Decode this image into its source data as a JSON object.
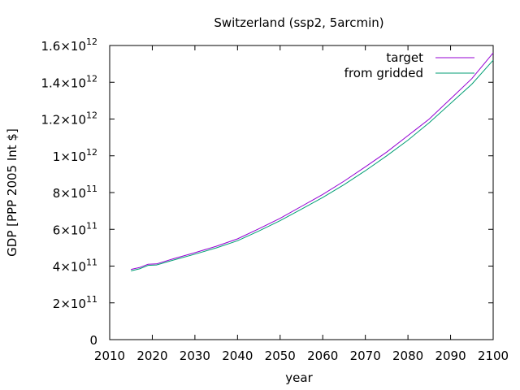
{
  "chart_data": {
    "type": "line",
    "title": "Switzerland (ssp2, 5arcmin)",
    "xlabel": "year",
    "ylabel": "GDP [PPP 2005 Int $]",
    "xlim": [
      2010,
      2100
    ],
    "ylim": [
      0,
      1600000000000.0
    ],
    "x_ticks": [
      "2010",
      "2020",
      "2030",
      "2040",
      "2050",
      "2060",
      "2070",
      "2080",
      "2090",
      "2100"
    ],
    "y_ticks": [
      {
        "value": 0,
        "mantissa": "0",
        "exponent": ""
      },
      {
        "value": 200000000000.0,
        "mantissa": "2×10",
        "exponent": "11"
      },
      {
        "value": 400000000000.0,
        "mantissa": "4×10",
        "exponent": "11"
      },
      {
        "value": 600000000000.0,
        "mantissa": "6×10",
        "exponent": "11"
      },
      {
        "value": 800000000000.0,
        "mantissa": "8×10",
        "exponent": "11"
      },
      {
        "value": 1000000000000.0,
        "mantissa": "1×10",
        "exponent": "12"
      },
      {
        "value": 1200000000000.0,
        "mantissa": "1.2×10",
        "exponent": "12"
      },
      {
        "value": 1400000000000.0,
        "mantissa": "1.4×10",
        "exponent": "12"
      },
      {
        "value": 1600000000000.0,
        "mantissa": "1.6×10",
        "exponent": "12"
      }
    ],
    "grid": false,
    "legend_position": "top-right",
    "series": [
      {
        "name": "target",
        "color": "#9400d3",
        "x": [
          2015,
          2017,
          2019,
          2021,
          2025,
          2030,
          2035,
          2040,
          2045,
          2050,
          2055,
          2060,
          2065,
          2070,
          2075,
          2080,
          2085,
          2090,
          2095,
          2100
        ],
        "y": [
          382000000000.0,
          392000000000.0,
          410000000000.0,
          412000000000.0,
          440000000000.0,
          473000000000.0,
          508000000000.0,
          548000000000.0,
          603000000000.0,
          660000000000.0,
          725000000000.0,
          790000000000.0,
          862000000000.0,
          940000000000.0,
          1020000000000.0,
          1110000000000.0,
          1200000000000.0,
          1310000000000.0,
          1420000000000.0,
          1560000000000.0
        ]
      },
      {
        "name": "from gridded",
        "color": "#009e73",
        "x": [
          2015,
          2017,
          2019,
          2021,
          2025,
          2030,
          2035,
          2040,
          2045,
          2050,
          2055,
          2060,
          2065,
          2070,
          2075,
          2080,
          2085,
          2090,
          2095,
          2100
        ],
        "y": [
          374000000000.0,
          385000000000.0,
          404000000000.0,
          406000000000.0,
          433000000000.0,
          465000000000.0,
          499000000000.0,
          538000000000.0,
          591000000000.0,
          647000000000.0,
          710000000000.0,
          773000000000.0,
          843000000000.0,
          919000000000.0,
          1000000000000.0,
          1085000000000.0,
          1180000000000.0,
          1285000000000.0,
          1390000000000.0,
          1520000000000.0
        ]
      }
    ]
  }
}
